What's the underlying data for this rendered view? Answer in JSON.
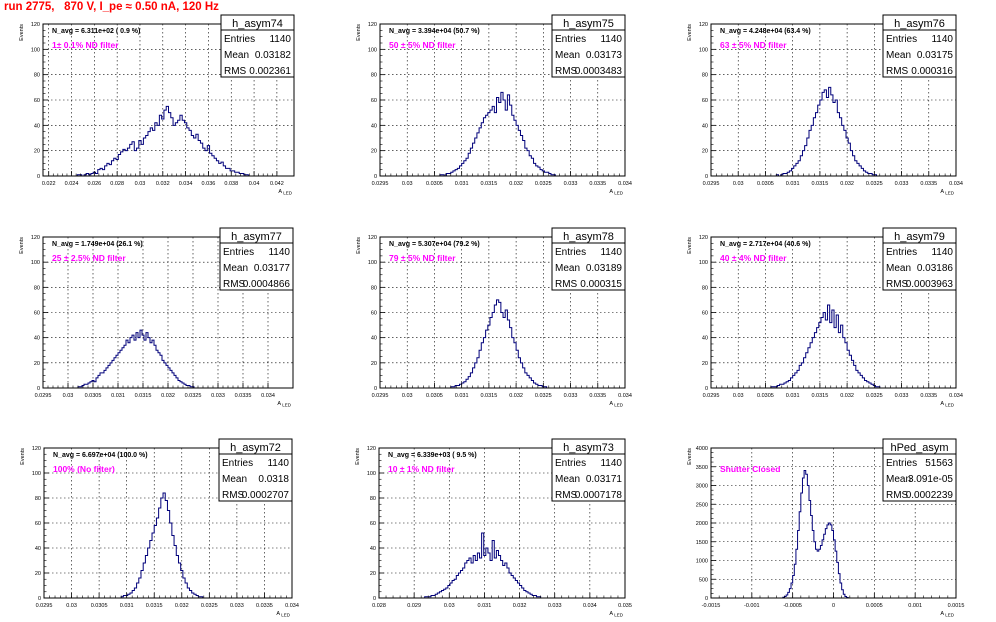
{
  "page_title": "run 2775,   870 V, I_pe ≈ 0.50 nA, 120 Hz",
  "colors": {
    "histogram": "#00007a",
    "annotation": "#ff00ff",
    "title": "#ff0000",
    "frame": "#000000"
  },
  "chart_data": [
    {
      "type": "histogram",
      "name": "h_asym74",
      "ylabel": "Events",
      "xlabel": "A_LED",
      "stats": {
        "entries": "1140",
        "mean": "0.03182",
        "rms": "0.002361"
      },
      "n_avg": "N_avg = 6.311e+02 ( 0.9 %)",
      "filter": "1± 0.1% ND filter",
      "xlim": [
        0.0215,
        0.0435
      ],
      "ylim": [
        0,
        120
      ],
      "xticks": [
        "0.022",
        "0.024",
        "0.026",
        "0.028",
        "0.03",
        "0.032",
        "0.034",
        "0.036",
        "0.038",
        "0.04",
        "0.042"
      ],
      "xtick_values": [
        0.022,
        0.024,
        0.026,
        0.028,
        0.03,
        0.032,
        0.034,
        0.036,
        0.038,
        0.04,
        0.042
      ],
      "yticks": [
        0,
        20,
        40,
        60,
        80,
        100,
        120
      ],
      "x_start": 0.0245,
      "bin_width": 0.0002,
      "counts": [
        1,
        1,
        0,
        1,
        2,
        1,
        2,
        3,
        2,
        5,
        6,
        5,
        8,
        10,
        9,
        12,
        14,
        13,
        17,
        19,
        21,
        20,
        22,
        25,
        27,
        20,
        22,
        28,
        25,
        30,
        32,
        35,
        38,
        36,
        42,
        40,
        48,
        45,
        52,
        55,
        50,
        46,
        40,
        42,
        44,
        48,
        44,
        42,
        38,
        36,
        32,
        30,
        33,
        28,
        26,
        22,
        20,
        24,
        18,
        16,
        14,
        12,
        10,
        11,
        8,
        6,
        6,
        4,
        4,
        3,
        3,
        2,
        2,
        1,
        1
      ]
    },
    {
      "type": "histogram",
      "name": "h_asym75",
      "ylabel": "Events",
      "xlabel": "A_LED",
      "stats": {
        "entries": "1140",
        "mean": "0.03173",
        "rms": "0.0003483"
      },
      "n_avg": "N_avg = 3.394e+04 (50.7 %)",
      "filter": "50 ± 5% ND filter",
      "xlim": [
        0.0295,
        0.034
      ],
      "ylim": [
        0,
        120
      ],
      "xticks": [
        "0.0295",
        "0.03",
        "0.0305",
        "0.031",
        "0.0315",
        "0.032",
        "0.0325",
        "0.033",
        "0.0335",
        "0.034"
      ],
      "xtick_values": [
        0.0295,
        0.03,
        0.0305,
        0.031,
        0.0315,
        0.032,
        0.0325,
        0.033,
        0.0335,
        0.034
      ],
      "yticks": [
        0,
        20,
        40,
        60,
        80,
        100,
        120
      ],
      "x_start": 0.0306,
      "bin_width": 4e-05,
      "counts": [
        1,
        1,
        0,
        2,
        2,
        3,
        4,
        5,
        6,
        8,
        10,
        12,
        14,
        18,
        22,
        26,
        30,
        34,
        38,
        42,
        46,
        48,
        50,
        52,
        55,
        50,
        62,
        58,
        66,
        60,
        52,
        64,
        56,
        48,
        44,
        40,
        36,
        32,
        28,
        22,
        20,
        16,
        14,
        10,
        8,
        7,
        5,
        4,
        3,
        3,
        2,
        1,
        1
      ]
    },
    {
      "type": "histogram",
      "name": "h_asym76",
      "ylabel": "Events",
      "xlabel": "A_LED",
      "stats": {
        "entries": "1140",
        "mean": "0.03175",
        "rms": "0.000316"
      },
      "n_avg": "N_avg = 4.248e+04 (63.4 %)",
      "filter": "63 ± 5% ND filter",
      "xlim": [
        0.0295,
        0.034
      ],
      "ylim": [
        0,
        120
      ],
      "xticks": [
        "0.0295",
        "0.03",
        "0.0305",
        "0.031",
        "0.0315",
        "0.032",
        "0.0325",
        "0.033",
        "0.0335",
        "0.034"
      ],
      "xtick_values": [
        0.0295,
        0.03,
        0.0305,
        0.031,
        0.0315,
        0.032,
        0.0325,
        0.033,
        0.0335,
        0.034
      ],
      "yticks": [
        0,
        20,
        40,
        60,
        80,
        100,
        120
      ],
      "x_start": 0.0307,
      "bin_width": 4e-05,
      "counts": [
        1,
        0,
        1,
        2,
        2,
        3,
        4,
        6,
        8,
        10,
        12,
        16,
        20,
        24,
        30,
        36,
        40,
        46,
        50,
        56,
        60,
        66,
        68,
        62,
        70,
        64,
        58,
        60,
        50,
        46,
        40,
        36,
        30,
        26,
        20,
        16,
        12,
        10,
        8,
        6,
        4,
        3,
        2,
        2,
        1,
        1
      ]
    },
    {
      "type": "histogram",
      "name": "h_asym77",
      "ylabel": "Events",
      "xlabel": "A_LED",
      "stats": {
        "entries": "1140",
        "mean": "0.03177",
        "rms": "0.0004866"
      },
      "n_avg": "N_avg = 1.749e+04 (26.1 %)",
      "filter": "25 ± 2.5% ND filter",
      "xlim": [
        0.0295,
        0.0345
      ],
      "ylim": [
        0,
        120
      ],
      "xticks": [
        "0.0295",
        "0.03",
        "0.0305",
        "0.031",
        "0.0315",
        "0.032",
        "0.0325",
        "0.033",
        "0.0335",
        "0.034"
      ],
      "xtick_values": [
        0.0295,
        0.03,
        0.0305,
        0.031,
        0.0315,
        0.032,
        0.0325,
        0.033,
        0.0335,
        0.034
      ],
      "yticks": [
        0,
        20,
        40,
        60,
        80,
        100,
        120
      ],
      "x_start": 0.0302,
      "bin_width": 4e-05,
      "counts": [
        1,
        1,
        2,
        3,
        3,
        4,
        5,
        6,
        5,
        8,
        10,
        12,
        12,
        14,
        16,
        18,
        20,
        22,
        24,
        26,
        28,
        30,
        32,
        34,
        38,
        36,
        40,
        42,
        38,
        44,
        40,
        46,
        42,
        38,
        44,
        40,
        36,
        38,
        34,
        30,
        28,
        26,
        22,
        20,
        18,
        16,
        14,
        12,
        10,
        8,
        6,
        5,
        4,
        3,
        2,
        2,
        1,
        1
      ]
    },
    {
      "type": "histogram",
      "name": "h_asym78",
      "ylabel": "Events",
      "xlabel": "A_LED",
      "stats": {
        "entries": "1140",
        "mean": "0.03189",
        "rms": "0.000315"
      },
      "n_avg": "N_avg = 5.307e+04 (79.2 %)",
      "filter": "79 ± 5% ND filter",
      "xlim": [
        0.0295,
        0.034
      ],
      "ylim": [
        0,
        120
      ],
      "xticks": [
        "0.0295",
        "0.03",
        "0.0305",
        "0.031",
        "0.0315",
        "0.032",
        "0.0325",
        "0.033",
        "0.0335",
        "0.034"
      ],
      "xtick_values": [
        0.0295,
        0.03,
        0.0305,
        0.031,
        0.0315,
        0.032,
        0.0325,
        0.033,
        0.0335,
        0.034
      ],
      "yticks": [
        0,
        20,
        40,
        60,
        80,
        100,
        120
      ],
      "x_start": 0.0308,
      "bin_width": 4e-05,
      "counts": [
        1,
        1,
        2,
        2,
        3,
        4,
        5,
        7,
        9,
        12,
        16,
        20,
        24,
        30,
        36,
        40,
        46,
        50,
        56,
        60,
        66,
        70,
        68,
        60,
        56,
        62,
        54,
        48,
        40,
        36,
        30,
        24,
        20,
        16,
        12,
        10,
        8,
        6,
        4,
        3,
        2,
        2,
        1,
        1
      ]
    },
    {
      "type": "histogram",
      "name": "h_asym79",
      "ylabel": "Events",
      "xlabel": "A_LED",
      "stats": {
        "entries": "1140",
        "mean": "0.03186",
        "rms": "0.0003963"
      },
      "n_avg": "N_avg = 2.717e+04 (40.6 %)",
      "filter": "40 ± 4% ND filter",
      "xlim": [
        0.0295,
        0.034
      ],
      "ylim": [
        0,
        120
      ],
      "xticks": [
        "0.0295",
        "0.03",
        "0.0305",
        "0.031",
        "0.0315",
        "0.032",
        "0.0325",
        "0.033",
        "0.0335",
        "0.034"
      ],
      "xtick_values": [
        0.0295,
        0.03,
        0.0305,
        0.031,
        0.0315,
        0.032,
        0.0325,
        0.033,
        0.0335,
        0.034
      ],
      "yticks": [
        0,
        20,
        40,
        60,
        80,
        100,
        120
      ],
      "x_start": 0.0306,
      "bin_width": 4e-05,
      "counts": [
        1,
        1,
        1,
        2,
        3,
        3,
        4,
        5,
        6,
        8,
        10,
        12,
        14,
        18,
        20,
        24,
        28,
        32,
        36,
        40,
        44,
        48,
        52,
        56,
        60,
        54,
        66,
        52,
        62,
        48,
        58,
        44,
        50,
        40,
        36,
        30,
        26,
        22,
        18,
        14,
        12,
        10,
        8,
        6,
        5,
        4,
        3,
        2,
        1,
        1
      ]
    },
    {
      "type": "histogram",
      "name": "h_asym72",
      "ylabel": "Events",
      "xlabel": "A_LED",
      "stats": {
        "entries": "1140",
        "mean": "0.0318",
        "rms": "0.0002707"
      },
      "n_avg": "N_avg = 6.697e+04 (100.0 %)",
      "filter": "100% (No filter)",
      "xlim": [
        0.0295,
        0.034
      ],
      "ylim": [
        0,
        120
      ],
      "xticks": [
        "0.0295",
        "0.03",
        "0.0305",
        "0.031",
        "0.0315",
        "0.032",
        "0.0325",
        "0.033",
        "0.0335",
        "0.034"
      ],
      "xtick_values": [
        0.0295,
        0.03,
        0.0305,
        0.031,
        0.0315,
        0.032,
        0.0325,
        0.033,
        0.0335,
        0.034
      ],
      "yticks": [
        0,
        20,
        40,
        60,
        80,
        100,
        120
      ],
      "x_start": 0.0309,
      "bin_width": 4e-05,
      "counts": [
        1,
        2,
        2,
        3,
        4,
        6,
        8,
        12,
        16,
        22,
        28,
        34,
        40,
        46,
        52,
        58,
        64,
        72,
        80,
        84,
        78,
        70,
        60,
        50,
        42,
        34,
        28,
        22,
        16,
        12,
        8,
        6,
        4,
        3,
        2,
        1,
        1
      ]
    },
    {
      "type": "histogram",
      "name": "h_asym73",
      "ylabel": "Events",
      "xlabel": "A_LED",
      "stats": {
        "entries": "1140",
        "mean": "0.03171",
        "rms": "0.0007178"
      },
      "n_avg": "N_avg = 6.339e+03 ( 9.5 %)",
      "filter": "10 ± 1% ND filter",
      "xlim": [
        0.028,
        0.035
      ],
      "ylim": [
        0,
        120
      ],
      "xticks": [
        "0.028",
        "0.029",
        "0.03",
        "0.031",
        "0.032",
        "0.033",
        "0.034",
        "0.035"
      ],
      "xtick_values": [
        0.028,
        0.029,
        0.03,
        0.031,
        0.032,
        0.033,
        0.034,
        0.035
      ],
      "yticks": [
        0,
        20,
        40,
        60,
        80,
        100,
        120
      ],
      "x_start": 0.0293,
      "bin_width": 6e-05,
      "counts": [
        1,
        1,
        1,
        2,
        2,
        3,
        4,
        5,
        6,
        7,
        8,
        10,
        12,
        14,
        15,
        18,
        20,
        22,
        24,
        28,
        30,
        32,
        28,
        34,
        30,
        36,
        32,
        52,
        34,
        40,
        36,
        30,
        46,
        32,
        38,
        34,
        30,
        26,
        28,
        24,
        20,
        18,
        16,
        14,
        12,
        10,
        8,
        6,
        5,
        4,
        3,
        2,
        2,
        1,
        1
      ]
    },
    {
      "type": "histogram",
      "name": "hPed_asym",
      "ylabel": "Events",
      "xlabel": "A_LED",
      "stats": {
        "entries": "51563",
        "mean": "3.091e-05",
        "rms": "0.0002239"
      },
      "filter": "Shutter Closed",
      "xlim": [
        -0.0015,
        0.0015
      ],
      "ylim": [
        0,
        4000
      ],
      "xticks": [
        "-0.0015",
        "-0.001",
        "-0.0005",
        "0",
        "0.0005",
        "0.001",
        "0.0015"
      ],
      "xtick_values": [
        -0.0015,
        -0.001,
        -0.0005,
        0,
        0.0005,
        0.001,
        0.0015
      ],
      "yticks": [
        0,
        500,
        1000,
        1500,
        2000,
        2500,
        3000,
        3500,
        4000
      ],
      "x_start": -0.00062,
      "bin_width": 2e-05,
      "counts": [
        20,
        40,
        80,
        150,
        250,
        400,
        600,
        900,
        1300,
        1800,
        2300,
        2800,
        3200,
        3400,
        3300,
        3000,
        2600,
        2200,
        1800,
        1500,
        1300,
        1250,
        1300,
        1400,
        1550,
        1700,
        1850,
        1950,
        2000,
        1950,
        1800,
        1550,
        1250,
        950,
        650,
        400,
        220,
        100,
        40,
        15
      ]
    }
  ]
}
